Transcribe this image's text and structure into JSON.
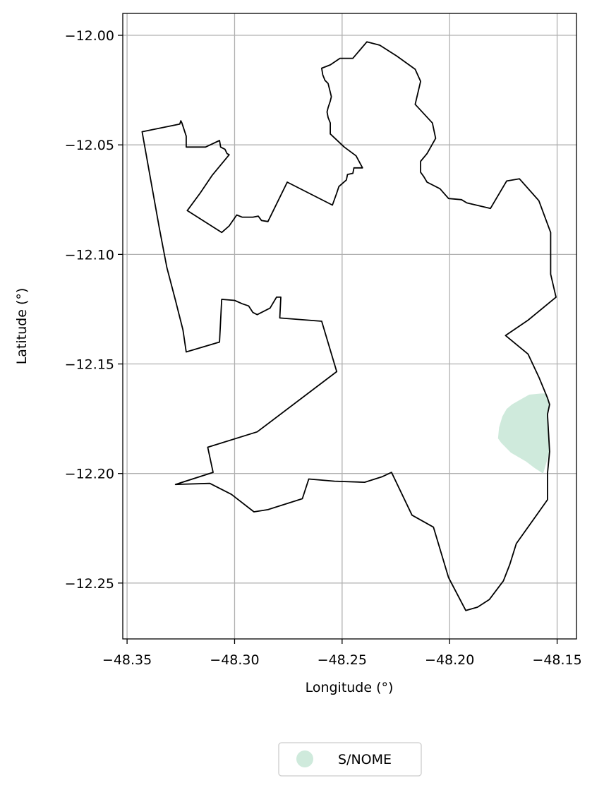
{
  "chart_data": {
    "type": "map",
    "xlabel": "Longitude (°)",
    "ylabel": "Latitude (°)",
    "xlim": [
      -48.352,
      -48.141
    ],
    "ylim": [
      -12.2755,
      -11.99
    ],
    "grid": true,
    "x_ticks": [
      {
        "value": -48.35,
        "label": "−48.35"
      },
      {
        "value": -48.3,
        "label": "−48.30"
      },
      {
        "value": -48.25,
        "label": "−48.25"
      },
      {
        "value": -48.2,
        "label": "−48.20"
      },
      {
        "value": -48.15,
        "label": "−48.15"
      }
    ],
    "y_ticks": [
      {
        "value": -12.0,
        "label": "−12.00"
      },
      {
        "value": -12.05,
        "label": "−12.05"
      },
      {
        "value": -12.1,
        "label": "−12.10"
      },
      {
        "value": -12.15,
        "label": "−12.15"
      },
      {
        "value": -12.2,
        "label": "−12.20"
      },
      {
        "value": -12.25,
        "label": "−12.25"
      }
    ],
    "boundary": {
      "stroke": "#000000",
      "coordinates": [
        [
          -48.343,
          -12.044
        ],
        [
          -48.3255,
          -12.0405
        ],
        [
          -48.325,
          -12.039
        ],
        [
          -48.3245,
          -12.04
        ],
        [
          -48.3225,
          -12.046
        ],
        [
          -48.3225,
          -12.051
        ],
        [
          -48.3135,
          -12.051
        ],
        [
          -48.307,
          -12.048
        ],
        [
          -48.3065,
          -12.051
        ],
        [
          -48.3045,
          -12.052
        ],
        [
          -48.3035,
          -12.054
        ],
        [
          -48.3025,
          -12.0545
        ],
        [
          -48.3105,
          -12.064
        ],
        [
          -48.316,
          -12.072
        ],
        [
          -48.322,
          -12.08
        ],
        [
          -48.306,
          -12.09
        ],
        [
          -48.3025,
          -12.087
        ],
        [
          -48.299,
          -12.082
        ],
        [
          -48.2965,
          -12.083
        ],
        [
          -48.2915,
          -12.083
        ],
        [
          -48.289,
          -12.0825
        ],
        [
          -48.2875,
          -12.0845
        ],
        [
          -48.2845,
          -12.085
        ],
        [
          -48.2755,
          -12.067
        ],
        [
          -48.2545,
          -12.0775
        ],
        [
          -48.2525,
          -12.072
        ],
        [
          -48.2515,
          -12.069
        ],
        [
          -48.248,
          -12.066
        ],
        [
          -48.2475,
          -12.0635
        ],
        [
          -48.245,
          -12.063
        ],
        [
          -48.2445,
          -12.0605
        ],
        [
          -48.2405,
          -12.0605
        ],
        [
          -48.2435,
          -12.055
        ],
        [
          -48.249,
          -12.051
        ],
        [
          -48.2555,
          -12.045
        ],
        [
          -48.2555,
          -12.04
        ],
        [
          -48.2565,
          -12.0375
        ],
        [
          -48.257,
          -12.035
        ],
        [
          -48.2565,
          -12.033
        ],
        [
          -48.2555,
          -12.03
        ],
        [
          -48.255,
          -12.028
        ],
        [
          -48.2555,
          -12.026
        ],
        [
          -48.2565,
          -12.022
        ],
        [
          -48.258,
          -12.0205
        ],
        [
          -48.259,
          -12.018
        ],
        [
          -48.2595,
          -12.015
        ],
        [
          -48.2555,
          -12.0135
        ],
        [
          -48.251,
          -12.0105
        ],
        [
          -48.245,
          -12.0105
        ],
        [
          -48.2385,
          -12.003
        ],
        [
          -48.2325,
          -12.0045
        ],
        [
          -48.2245,
          -12.0095
        ],
        [
          -48.216,
          -12.0155
        ],
        [
          -48.2135,
          -12.021
        ],
        [
          -48.216,
          -12.0315
        ],
        [
          -48.208,
          -12.04
        ],
        [
          -48.2065,
          -12.047
        ],
        [
          -48.2105,
          -12.054
        ],
        [
          -48.2135,
          -12.0575
        ],
        [
          -48.2135,
          -12.0625
        ],
        [
          -48.212,
          -12.0645
        ],
        [
          -48.2105,
          -12.067
        ],
        [
          -48.2045,
          -12.07
        ],
        [
          -48.2005,
          -12.0745
        ],
        [
          -48.1945,
          -12.075
        ],
        [
          -48.192,
          -12.0765
        ],
        [
          -48.181,
          -12.079
        ],
        [
          -48.1735,
          -12.0665
        ],
        [
          -48.1675,
          -12.0655
        ],
        [
          -48.1585,
          -12.0755
        ],
        [
          -48.153,
          -12.09
        ],
        [
          -48.153,
          -12.109
        ],
        [
          -48.1505,
          -12.1195
        ],
        [
          -48.1635,
          -12.13
        ],
        [
          -48.174,
          -12.137
        ],
        [
          -48.1635,
          -12.1455
        ],
        [
          -48.1585,
          -12.156
        ],
        [
          -48.1545,
          -12.1655
        ],
        [
          -48.1535,
          -12.1685
        ],
        [
          -48.1545,
          -12.173
        ],
        [
          -48.1535,
          -12.19
        ],
        [
          -48.1545,
          -12.2
        ],
        [
          -48.1545,
          -12.212
        ],
        [
          -48.169,
          -12.232
        ],
        [
          -48.172,
          -12.2415
        ],
        [
          -48.175,
          -12.249
        ],
        [
          -48.1815,
          -12.2575
        ],
        [
          -48.187,
          -12.261
        ],
        [
          -48.1925,
          -12.2625
        ],
        [
          -48.2005,
          -12.2475
        ],
        [
          -48.2075,
          -12.2245
        ],
        [
          -48.2175,
          -12.219
        ],
        [
          -48.227,
          -12.1995
        ],
        [
          -48.2315,
          -12.2015
        ],
        [
          -48.2395,
          -12.204
        ],
        [
          -48.2535,
          -12.2035
        ],
        [
          -48.2655,
          -12.2025
        ],
        [
          -48.2685,
          -12.2115
        ],
        [
          -48.2845,
          -12.2165
        ],
        [
          -48.291,
          -12.2175
        ],
        [
          -48.3015,
          -12.2095
        ],
        [
          -48.3115,
          -12.2045
        ],
        [
          -48.3275,
          -12.205
        ],
        [
          -48.31,
          -12.1995
        ],
        [
          -48.3125,
          -12.188
        ],
        [
          -48.2895,
          -12.181
        ],
        [
          -48.2525,
          -12.1535
        ],
        [
          -48.2595,
          -12.1305
        ],
        [
          -48.279,
          -12.129
        ],
        [
          -48.2785,
          -12.1195
        ],
        [
          -48.2805,
          -12.1195
        ],
        [
          -48.2835,
          -12.1245
        ],
        [
          -48.2875,
          -12.1265
        ],
        [
          -48.2895,
          -12.1275
        ],
        [
          -48.2915,
          -12.1265
        ],
        [
          -48.2935,
          -12.1235
        ],
        [
          -48.2965,
          -12.1225
        ],
        [
          -48.3,
          -12.121
        ],
        [
          -48.306,
          -12.1205
        ],
        [
          -48.307,
          -12.14
        ],
        [
          -48.3225,
          -12.1445
        ],
        [
          -48.324,
          -12.1345
        ],
        [
          -48.3275,
          -12.121
        ],
        [
          -48.3315,
          -12.106
        ],
        [
          -48.335,
          -12.088
        ],
        [
          -48.343,
          -12.044
        ]
      ]
    },
    "polygons": [
      {
        "name": "S/NOME",
        "fill": "#cfeadc",
        "coordinates": [
          [
            -48.1575,
            -12.1635
          ],
          [
            -48.155,
            -12.1635
          ],
          [
            -48.1535,
            -12.168
          ],
          [
            -48.1545,
            -12.173
          ],
          [
            -48.1535,
            -12.19
          ],
          [
            -48.1565,
            -12.2
          ],
          [
            -48.1605,
            -12.1975
          ],
          [
            -48.1645,
            -12.1945
          ],
          [
            -48.1715,
            -12.1905
          ],
          [
            -48.176,
            -12.186
          ],
          [
            -48.1775,
            -12.184
          ],
          [
            -48.177,
            -12.179
          ],
          [
            -48.1755,
            -12.174
          ],
          [
            -48.1735,
            -12.1705
          ],
          [
            -48.171,
            -12.1685
          ],
          [
            -48.1675,
            -12.1665
          ],
          [
            -48.163,
            -12.164
          ],
          [
            -48.1575,
            -12.1635
          ]
        ]
      }
    ],
    "legend": {
      "placement": "bottom-center",
      "entries": [
        {
          "label": "S/NOME",
          "color": "#cfeadc",
          "marker": "circle"
        }
      ]
    }
  }
}
